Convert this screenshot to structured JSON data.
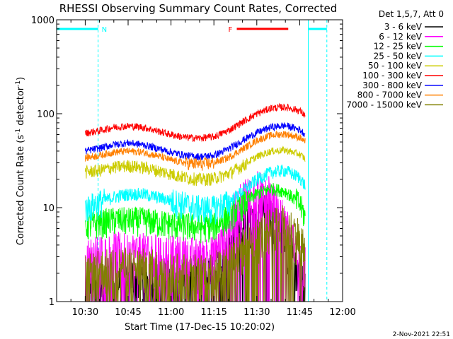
{
  "chart_data": {
    "type": "line",
    "title": "RHESSI Observing Summary Count Rates, Corrected",
    "xlabel": "Start Time (17-Dec-15 10:20:02)",
    "ylabel_main": "Corrected Count Rate (s",
    "ylabel_sup1": "-1",
    "ylabel_mid": " detector",
    "ylabel_sup2": "-1",
    "ylabel_end": ")",
    "y_scale": "log",
    "xlim_minutes": [
      620,
      720
    ],
    "ylim": [
      1,
      1000
    ],
    "x_ticks": [
      {
        "m": 630,
        "label": "10:30"
      },
      {
        "m": 645,
        "label": "10:45"
      },
      {
        "m": 660,
        "label": "11:00"
      },
      {
        "m": 675,
        "label": "11:15"
      },
      {
        "m": 690,
        "label": "11:30"
      },
      {
        "m": 705,
        "label": "11:45"
      },
      {
        "m": 720,
        "label": "12:00"
      }
    ],
    "y_ticks": [
      {
        "v": 1,
        "label": "1"
      },
      {
        "v": 10,
        "label": "10"
      },
      {
        "v": 100,
        "label": "100"
      },
      {
        "v": 1000,
        "label": "1000"
      }
    ],
    "legend_header": "Det 1,5,7, Att 0",
    "data_start_minute": 630,
    "data_end_minute": 707,
    "annotation_N": "N",
    "annotation_F": "F",
    "night_intervals": [
      [
        620,
        634.5
      ],
      [
        708,
        714.5
      ]
    ],
    "flare_interval": [
      683,
      701
    ],
    "flare_level": 800,
    "series": [
      {
        "name": "3 - 6 keV",
        "color": "#000000",
        "x": [
          630,
          635,
          640,
          650,
          660,
          670,
          675,
          678,
          682,
          686,
          690,
          694,
          698,
          702,
          705,
          707
        ],
        "y": [
          1.3,
          1.4,
          1.8,
          1.9,
          1.8,
          1.9,
          2.0,
          2.8,
          4.5,
          7.0,
          9.0,
          11.0,
          7.0,
          3.5,
          2.0,
          1.3
        ]
      },
      {
        "name": "6 - 12 keV",
        "color": "#ff00ff",
        "x": [
          630,
          635,
          640,
          650,
          660,
          670,
          675,
          678,
          682,
          686,
          690,
          694,
          698,
          702,
          705,
          707
        ],
        "y": [
          3.0,
          3.3,
          3.6,
          3.5,
          3.3,
          3.1,
          3.3,
          4.5,
          9.0,
          14.0,
          16.0,
          15.0,
          9.0,
          5.0,
          3.0,
          2.5
        ]
      },
      {
        "name": "12 - 25 keV",
        "color": "#00ff00",
        "x": [
          630,
          635,
          640,
          650,
          660,
          670,
          675,
          680,
          685,
          690,
          695,
          700,
          705,
          707
        ],
        "y": [
          6.5,
          7.0,
          7.5,
          7.5,
          6.8,
          6.3,
          6.5,
          8.0,
          11.0,
          14.0,
          16.0,
          15.0,
          11.0,
          8.0
        ]
      },
      {
        "name": "25 - 50 keV",
        "color": "#00ffff",
        "x": [
          630,
          635,
          640,
          645,
          650,
          655,
          660,
          665,
          670,
          675,
          680,
          685,
          690,
          695,
          700,
          705,
          707
        ],
        "y": [
          10.0,
          11.5,
          13.0,
          14.0,
          14.0,
          13.0,
          12.0,
          11.0,
          10.0,
          10.0,
          11.5,
          15.0,
          20.0,
          24.0,
          25.0,
          21.0,
          17.0
        ]
      },
      {
        "name": "50 - 100 keV",
        "color": "#cccc00",
        "x": [
          630,
          635,
          640,
          645,
          650,
          655,
          660,
          665,
          670,
          675,
          680,
          685,
          690,
          695,
          700,
          705,
          707
        ],
        "y": [
          24.0,
          25.0,
          27.0,
          28.0,
          27.0,
          25.0,
          23.0,
          21.0,
          20.0,
          20.5,
          23.0,
          28.0,
          35.0,
          40.0,
          41.0,
          37.0,
          33.0
        ]
      },
      {
        "name": "100 - 300 keV",
        "color": "#ff0000",
        "x": [
          630,
          635,
          640,
          645,
          650,
          655,
          660,
          665,
          670,
          675,
          680,
          685,
          690,
          695,
          700,
          705,
          707
        ],
        "y": [
          62.0,
          66.0,
          72.0,
          74.0,
          72.0,
          66.0,
          60.0,
          56.0,
          55.0,
          57.0,
          66.0,
          82.0,
          100.0,
          115.0,
          118.0,
          108.0,
          95.0
        ]
      },
      {
        "name": "300 - 800 keV",
        "color": "#0000ff",
        "x": [
          630,
          635,
          640,
          645,
          650,
          655,
          660,
          665,
          670,
          675,
          680,
          685,
          690,
          695,
          700,
          705,
          707
        ],
        "y": [
          40.0,
          43.0,
          47.0,
          49.0,
          47.0,
          43.0,
          39.0,
          36.0,
          35.0,
          36.0,
          42.0,
          52.0,
          63.0,
          72.0,
          75.0,
          68.0,
          60.0
        ]
      },
      {
        "name": "800 - 7000 keV",
        "color": "#ff8000",
        "x": [
          630,
          635,
          640,
          645,
          650,
          655,
          660,
          665,
          670,
          675,
          680,
          685,
          690,
          695,
          700,
          705,
          707
        ],
        "y": [
          34.0,
          36.0,
          39.0,
          40.0,
          39.0,
          36.0,
          32.0,
          30.0,
          29.0,
          30.0,
          34.0,
          42.0,
          52.0,
          59.0,
          61.0,
          56.0,
          50.0
        ]
      },
      {
        "name": "7000 - 15000 keV",
        "color": "#808000",
        "x": [
          630,
          635,
          640,
          650,
          660,
          670,
          675,
          680,
          685,
          690,
          695,
          700,
          705,
          707
        ],
        "y": [
          2.0,
          2.3,
          2.5,
          2.4,
          2.2,
          2.1,
          2.2,
          2.8,
          3.8,
          5.0,
          6.5,
          7.0,
          5.0,
          3.5
        ]
      }
    ]
  },
  "footer_timestamp": "2-Nov-2021 22:51"
}
